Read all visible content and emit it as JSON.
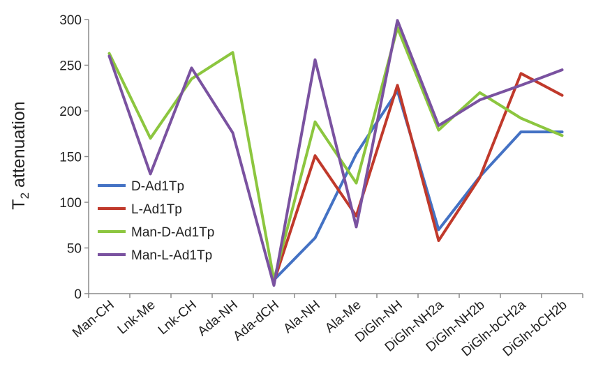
{
  "chart_data": {
    "type": "line",
    "title": "",
    "xlabel": "",
    "ylabel": "T",
    "ylabel_subscript": "2",
    "ylabel_rest": " attenuation",
    "ylim": [
      0,
      300
    ],
    "yticks": [
      "0",
      "50",
      "100",
      "150",
      "200",
      "250",
      "300"
    ],
    "categories": [
      "Man-CH",
      "Lnk-Me",
      "Lnk-CH",
      "Ada-NH",
      "Ada-dCH",
      "Ala-NH",
      "Ala-Me",
      "DiGln-NH",
      "DiGln-NH2a",
      "DiGln-NH2b",
      "DiGln-bCH2a",
      "DiGln-bCH2b"
    ],
    "grid": false,
    "legend_position": "left",
    "series": [
      {
        "name": "D-Ad1Tp",
        "color": "#4472c4",
        "values": [
          null,
          null,
          null,
          null,
          15,
          61,
          153,
          222,
          70,
          128,
          177,
          177
        ]
      },
      {
        "name": "L-Ad1Tp",
        "color": "#c0392b",
        "values": [
          null,
          null,
          null,
          null,
          13,
          151,
          85,
          228,
          58,
          127,
          241,
          217
        ]
      },
      {
        "name": "Man-D-Ad1Tp",
        "color": "#8cc63f",
        "values": [
          263,
          170,
          235,
          264,
          15,
          188,
          121,
          291,
          179,
          220,
          192,
          173
        ]
      },
      {
        "name": "Man-L-Ad1Tp",
        "color": "#7a52a0",
        "values": [
          260,
          131,
          247,
          176,
          9,
          256,
          73,
          299,
          184,
          212,
          228,
          245
        ]
      }
    ]
  }
}
